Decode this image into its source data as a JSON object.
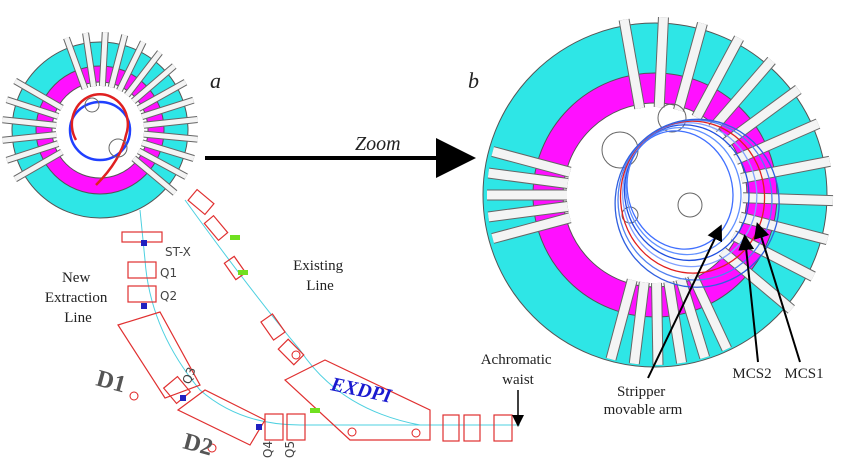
{
  "panel_labels": {
    "a": "a",
    "b": "b"
  },
  "arrow_label": "Zoom",
  "left": {
    "stx": "ST-X",
    "q1": "Q1",
    "q2": "Q2",
    "new_line": [
      "New",
      "Extraction",
      "Line"
    ],
    "existing_line": [
      "Existing",
      "Line"
    ],
    "d1": "D1",
    "q3": "Q3",
    "d2": "D2",
    "q4": "Q4",
    "q5": "Q5",
    "exdpi": "EXDPI",
    "achromatic": [
      "Achromatic",
      "waist"
    ]
  },
  "right": {
    "stripper": [
      "Stripper",
      "movable arm"
    ],
    "mcs2": "MCS2",
    "mcs1": "MCS1"
  }
}
